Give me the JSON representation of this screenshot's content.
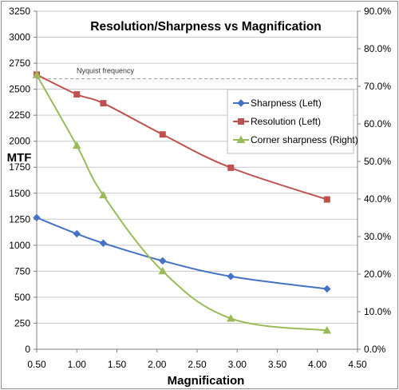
{
  "chart_data": {
    "type": "line",
    "title": "Resolution/Sharpness vs Magnification",
    "xlabel": "Magnification",
    "ylabel": "MTF",
    "x_ticks": [
      "0.50",
      "1.00",
      "1.50",
      "2.00",
      "2.50",
      "3.00",
      "3.50",
      "4.00",
      "4.50"
    ],
    "xlim": [
      0.5,
      4.5
    ],
    "y_ticks": [
      "0",
      "250",
      "500",
      "750",
      "1000",
      "1250",
      "1500",
      "1750",
      "2000",
      "2250",
      "2500",
      "2750",
      "3000",
      "3250"
    ],
    "ylim": [
      0,
      3250
    ],
    "y2_ticks": [
      "0.0%",
      "10.0%",
      "20.0%",
      "30.0%",
      "40.0%",
      "50.0%",
      "60.0%",
      "70.0%",
      "80.0%",
      "90.0%"
    ],
    "y2lim": [
      0,
      90
    ],
    "grid": "horizontal",
    "legend_position": "right",
    "annotation": {
      "label": "Nyquist frequency",
      "y": 2600
    },
    "series": [
      {
        "name": "Sharpness (Left)",
        "axis": "left",
        "color": "#4472C4",
        "marker": "diamond",
        "x": [
          0.5,
          1.0,
          1.33,
          2.07,
          2.92,
          4.12
        ],
        "y": [
          1265,
          1110,
          1020,
          850,
          700,
          580
        ]
      },
      {
        "name": "Resolution (Left)",
        "axis": "left",
        "color": "#C0504D",
        "marker": "square",
        "x": [
          0.5,
          1.0,
          1.33,
          2.07,
          2.92,
          4.12
        ],
        "y": [
          2640,
          2450,
          2365,
          2065,
          1745,
          1440
        ]
      },
      {
        "name": "Corner sharpness (Right)",
        "axis": "right",
        "color": "#9BBB59",
        "marker": "triangle",
        "x": [
          0.5,
          1.0,
          1.33,
          2.07,
          2.92,
          4.12
        ],
        "y": [
          73.0,
          54.2,
          41.0,
          20.8,
          8.2,
          5.0
        ]
      }
    ]
  }
}
